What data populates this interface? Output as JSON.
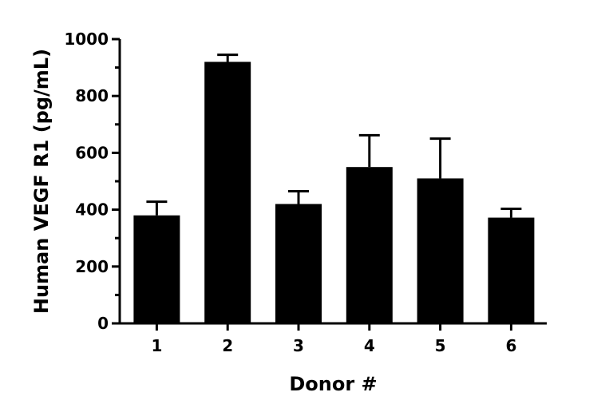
{
  "chart_data": {
    "type": "bar",
    "categories": [
      "1",
      "2",
      "3",
      "4",
      "5",
      "6"
    ],
    "values": [
      380,
      920,
      420,
      550,
      510,
      372
    ],
    "error_upper": [
      428,
      945,
      465,
      662,
      650,
      403
    ],
    "xlabel": "Donor #",
    "ylabel": "Human VEGF R1 (pg/mL)",
    "ylim": [
      0,
      1000
    ],
    "yticks": [
      0,
      200,
      400,
      600,
      800,
      1000
    ],
    "y_minor_ticks": [
      100,
      300,
      500,
      700,
      900
    ],
    "bar_color": "#000000",
    "grid": false,
    "legend": "none"
  }
}
